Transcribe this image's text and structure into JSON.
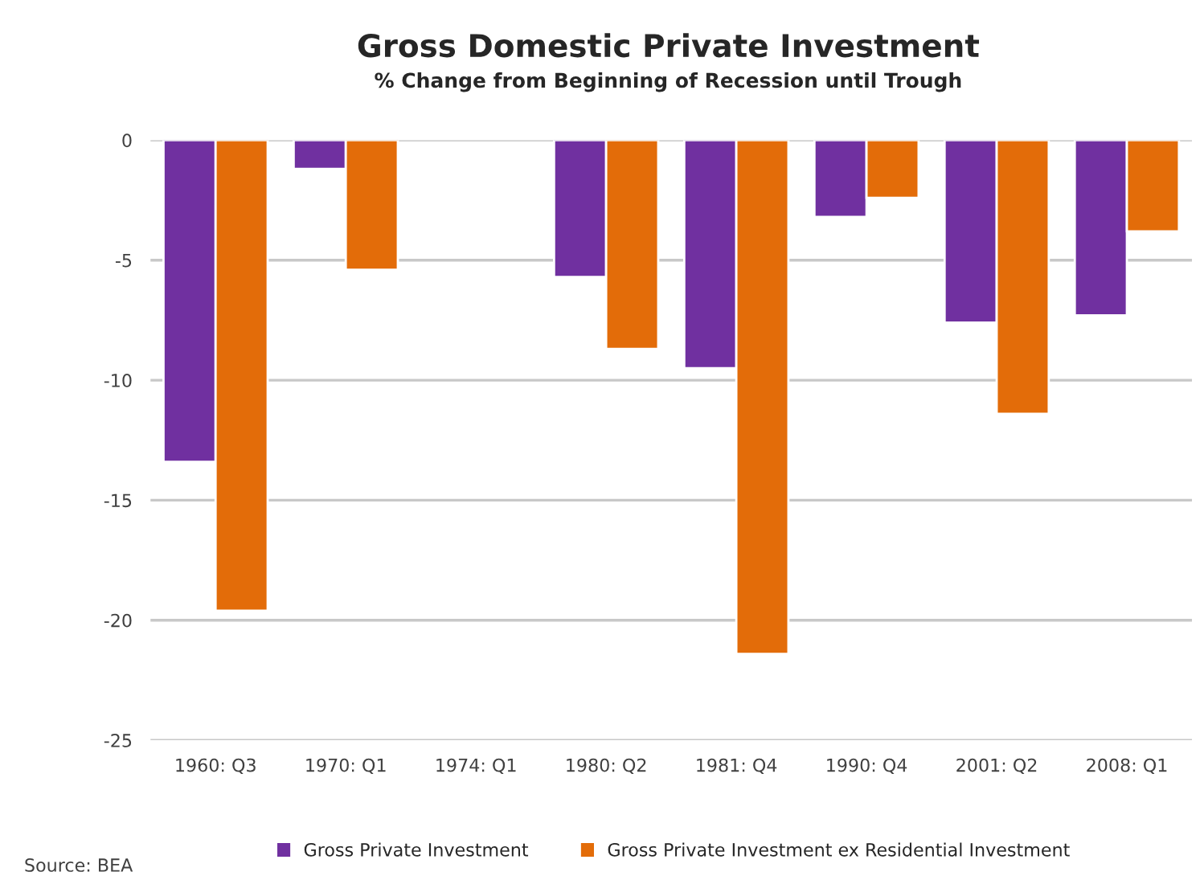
{
  "chart_data": {
    "type": "bar",
    "title": "Gross Domestic Private Investment",
    "subtitle": "% Change from Beginning of Recession until Trough",
    "categories": [
      "1960: Q3",
      "1970: Q1",
      "1974: Q1",
      "1980: Q2",
      "1981: Q4",
      "1990: Q4",
      "2001: Q2",
      "2008: Q1"
    ],
    "series": [
      {
        "name": "Gross Private Investment",
        "color": "#7030a0",
        "values": [
          -13.4,
          -1.2,
          null,
          -5.7,
          -9.5,
          -3.2,
          -7.6,
          -7.3
        ]
      },
      {
        "name": "Gross Private Investment ex Residential Investment",
        "color": "#e36c09",
        "values": [
          -19.6,
          -5.4,
          null,
          -8.7,
          -21.4,
          -2.4,
          -11.4,
          -3.8
        ]
      }
    ],
    "ylim": [
      -25,
      0
    ],
    "yticks": [
      -25,
      -20,
      -15,
      -10,
      -5,
      0
    ],
    "grid": "y",
    "legend": "bottom",
    "annotations": [
      "Source: BEA"
    ]
  }
}
